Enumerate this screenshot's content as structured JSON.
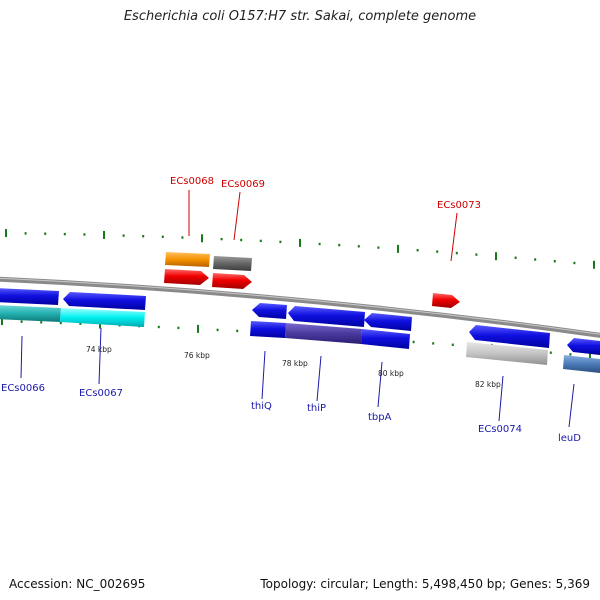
{
  "title": "Escherichia coli O157:H7 str. Sakai, complete genome",
  "footer": {
    "accession": "Accession: NC_002695",
    "topology": "Topology: circular; Length: 5,498,450 bp; Genes: 5,369"
  },
  "colors": {
    "backbone": "#8a8a8a",
    "tick": "#1a7a1a",
    "top_label": "#cc0000",
    "bottom_label": "#1a1aaa",
    "leader_top": "#cc0000",
    "leader_bottom": "#1a1aaa"
  },
  "position_ticks": [
    {
      "label": "74 kbp"
    },
    {
      "label": "76 kbp"
    },
    {
      "label": "78 kbp"
    },
    {
      "label": "80 kbp"
    },
    {
      "label": "82 kbp"
    }
  ],
  "gene_labels_top": [
    {
      "name": "ECs0068"
    },
    {
      "name": "ECs0069"
    },
    {
      "name": "ECs0073"
    }
  ],
  "gene_labels_bottom": [
    {
      "name": "ECs0066"
    },
    {
      "name": "ECs0067"
    },
    {
      "name": "thiQ"
    },
    {
      "name": "thiP"
    },
    {
      "name": "tbpA"
    },
    {
      "name": "ECs0074"
    },
    {
      "name": "leuD"
    }
  ]
}
